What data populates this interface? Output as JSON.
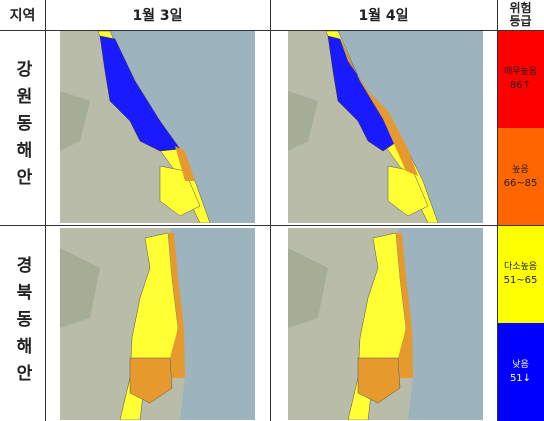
{
  "header": {
    "region": "지역",
    "dates": [
      "1월 3일",
      "1월 4일"
    ],
    "risk": [
      "위험",
      "등급"
    ]
  },
  "regions": [
    "강원동해안",
    "경북동해안"
  ],
  "levels": [
    {
      "label": "매우높음",
      "range": "86↑",
      "color": "#ff0000"
    },
    {
      "label": "높음",
      "range": "66~85",
      "color": "#ff6600"
    },
    {
      "label": "다소높음",
      "range": "51~65",
      "color": "#ffff00"
    },
    {
      "label": "낮음",
      "range": "51↓",
      "color": "#0000ff"
    }
  ]
}
